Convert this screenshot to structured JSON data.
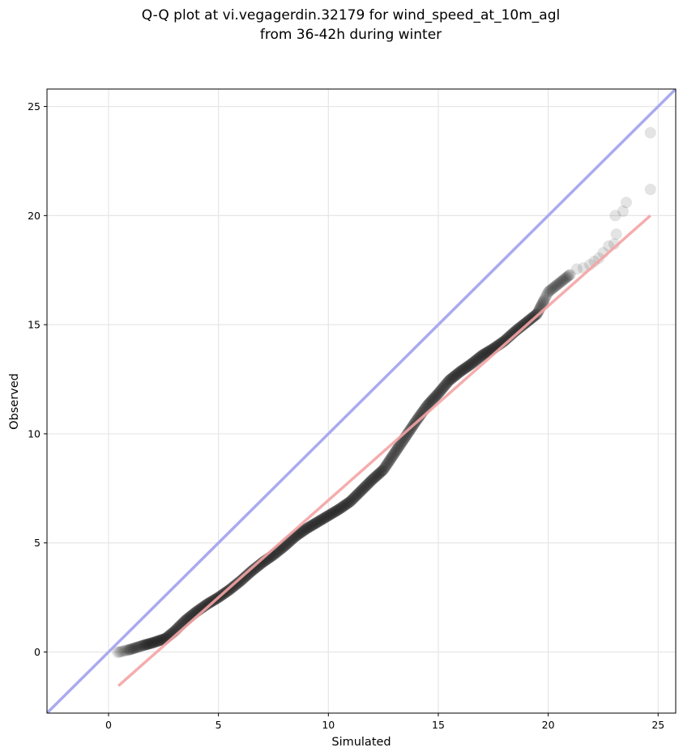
{
  "chart_data": {
    "type": "scatter",
    "title_lines": [
      "Q-Q plot at vi.vegagerdin.32179 for wind_speed_at_10m_agl",
      "from 36-42h during winter"
    ],
    "xlabel": "Simulated",
    "ylabel": "Observed",
    "xlim": [
      -2.8,
      25.8
    ],
    "ylim": [
      -2.8,
      25.8
    ],
    "xticks": [
      0,
      5,
      10,
      15,
      20,
      25
    ],
    "yticks": [
      0,
      5,
      10,
      15,
      20,
      25
    ],
    "grid": true,
    "identity_line": {
      "x": [
        -2.8,
        25.8
      ],
      "y": [
        -2.8,
        25.8
      ],
      "color": "#aaaaf0"
    },
    "fit_line": {
      "x": [
        0.45,
        24.65
      ],
      "y": [
        -1.55,
        20.0
      ],
      "color": "#f4a4a4"
    },
    "point_color": "#222222",
    "quantile_curve": [
      [
        0.4,
        -0.02
      ],
      [
        1.0,
        0.12
      ],
      [
        1.5,
        0.28
      ],
      [
        2.0,
        0.42
      ],
      [
        2.6,
        0.62
      ],
      [
        3.0,
        0.95
      ],
      [
        3.5,
        1.45
      ],
      [
        4.0,
        1.85
      ],
      [
        4.5,
        2.2
      ],
      [
        5.0,
        2.5
      ],
      [
        5.5,
        2.85
      ],
      [
        6.0,
        3.25
      ],
      [
        6.5,
        3.7
      ],
      [
        7.0,
        4.1
      ],
      [
        7.5,
        4.45
      ],
      [
        8.0,
        4.85
      ],
      [
        8.5,
        5.3
      ],
      [
        9.0,
        5.65
      ],
      [
        9.5,
        5.95
      ],
      [
        10.0,
        6.25
      ],
      [
        10.5,
        6.55
      ],
      [
        11.0,
        6.9
      ],
      [
        11.5,
        7.4
      ],
      [
        12.0,
        7.9
      ],
      [
        12.5,
        8.35
      ],
      [
        13.0,
        9.1
      ],
      [
        13.5,
        9.85
      ],
      [
        14.0,
        10.6
      ],
      [
        14.5,
        11.3
      ],
      [
        15.0,
        11.85
      ],
      [
        15.5,
        12.45
      ],
      [
        16.0,
        12.85
      ],
      [
        16.5,
        13.2
      ],
      [
        17.0,
        13.6
      ],
      [
        17.5,
        13.9
      ],
      [
        18.0,
        14.25
      ],
      [
        18.5,
        14.7
      ],
      [
        19.0,
        15.1
      ],
      [
        19.5,
        15.5
      ],
      [
        20.0,
        16.5
      ],
      [
        20.5,
        16.9
      ],
      [
        21.0,
        17.3
      ]
    ],
    "tail_points": [
      [
        21.3,
        17.55
      ],
      [
        21.6,
        17.6
      ],
      [
        21.9,
        17.75
      ],
      [
        22.1,
        17.9
      ],
      [
        22.3,
        18.05
      ],
      [
        22.5,
        18.3
      ],
      [
        22.75,
        18.6
      ],
      [
        23.0,
        18.7
      ],
      [
        23.1,
        19.15
      ],
      [
        23.05,
        20.0
      ],
      [
        23.4,
        20.2
      ],
      [
        23.55,
        20.6
      ],
      [
        24.65,
        21.2
      ],
      [
        24.65,
        23.8
      ]
    ]
  }
}
